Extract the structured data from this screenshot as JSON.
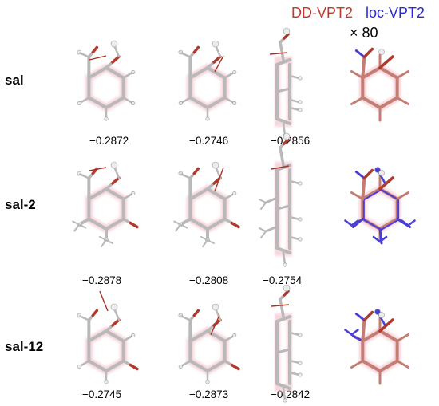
{
  "legend": {
    "dd_label": "DD-VPT2",
    "loc_label": "loc-VPT2",
    "scale_label": "× 80",
    "dd_color": "#c0392b",
    "loc_color": "#2a2ad8"
  },
  "rows": [
    {
      "label": "sal",
      "values": [
        "−0.2872",
        "−0.2746",
        "−0.2856"
      ]
    },
    {
      "label": "sal-2",
      "values": [
        "−0.2878",
        "−0.2808",
        "−0.2754"
      ]
    },
    {
      "label": "sal-12",
      "values": [
        "−0.2745",
        "−0.2873",
        "−0.2842"
      ]
    }
  ],
  "colors": {
    "bond": "#b9b9b9",
    "bond_dark": "#8f8f8f",
    "oxygen": "#b03a2e",
    "hydrogen": "#ececec",
    "vector": "#a93226",
    "overlay_red": "#c47d72",
    "overlay_blue": "#4a3fd6",
    "glow": "#f3c6cf"
  }
}
